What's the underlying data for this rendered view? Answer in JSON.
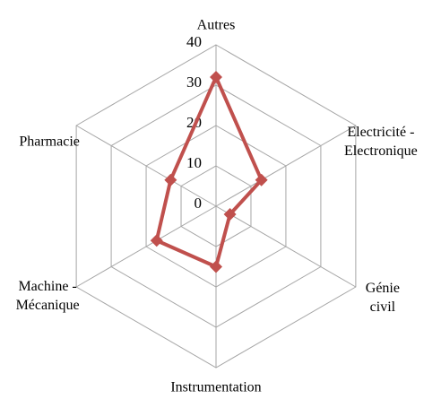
{
  "chart_data": {
    "type": "radar",
    "categories": [
      "Autres",
      "Electricité -\nElectronique",
      "Génie civil",
      "Instrumentation",
      "Machine -\nMécanique",
      "Pharmacie"
    ],
    "series": [
      {
        "color": "#c0504d",
        "values": [
          32,
          13,
          4,
          15,
          17,
          13
        ]
      }
    ],
    "ylim": [
      0,
      40
    ],
    "yticks": [
      0,
      10,
      20,
      30,
      40
    ],
    "grid": true
  }
}
